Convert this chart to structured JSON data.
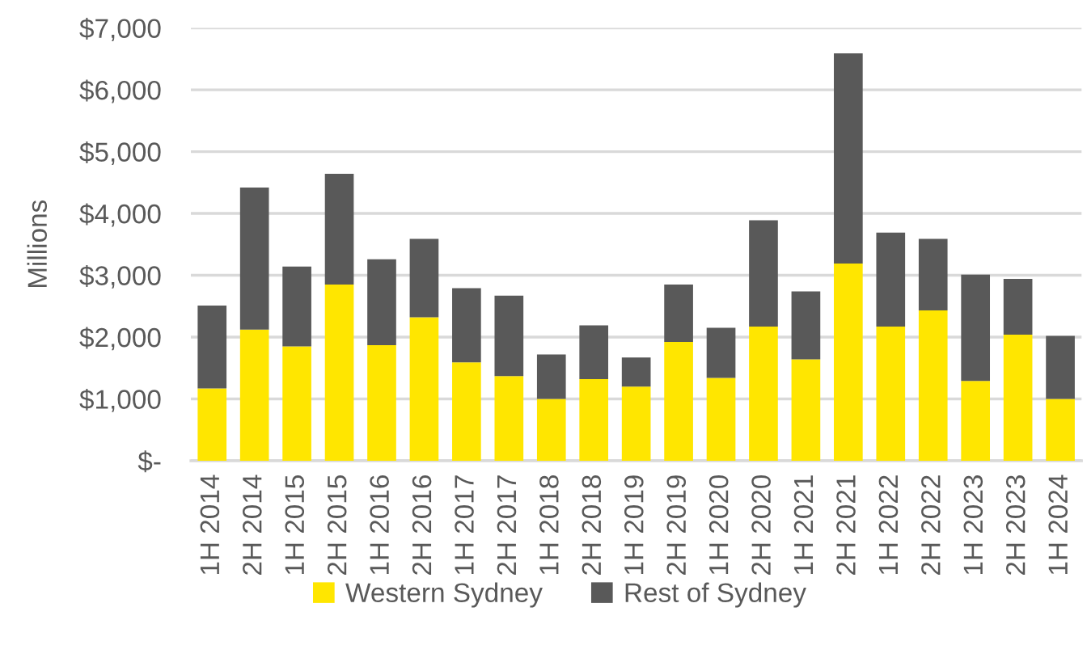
{
  "chart_data": {
    "type": "bar",
    "stacked": true,
    "ylabel": "Millions",
    "categories": [
      "1H 2014",
      "2H 2014",
      "1H 2015",
      "2H 2015",
      "1H 2016",
      "2H 2016",
      "1H 2017",
      "2H 2017",
      "1H 2018",
      "2H 2018",
      "1H 2019",
      "2H 2019",
      "1H 2020",
      "2H 2020",
      "1H 2021",
      "2H 2021",
      "1H 2022",
      "2H 2022",
      "1H 2023",
      "2H 2023",
      "1H 2024"
    ],
    "series": [
      {
        "name": "Western Sydney",
        "color": "#ffe600",
        "values": [
          1170,
          2120,
          1850,
          2850,
          1870,
          2320,
          1590,
          1370,
          1000,
          1320,
          1200,
          1920,
          1340,
          2170,
          1640,
          3190,
          2170,
          2430,
          1290,
          2040,
          1000
        ]
      },
      {
        "name": "Rest of Sydney",
        "color": "#595959",
        "values": [
          1340,
          2300,
          1290,
          1790,
          1390,
          1270,
          1200,
          1300,
          720,
          870,
          470,
          930,
          810,
          1720,
          1100,
          3400,
          1520,
          1160,
          1720,
          900,
          1020
        ]
      }
    ],
    "ylim": [
      0,
      7000
    ],
    "yticks": [
      {
        "value": 0,
        "label": "$-"
      },
      {
        "value": 1000,
        "label": "$1,000"
      },
      {
        "value": 2000,
        "label": "$2,000"
      },
      {
        "value": 3000,
        "label": "$3,000"
      },
      {
        "value": 4000,
        "label": "$4,000"
      },
      {
        "value": 5000,
        "label": "$5,000"
      },
      {
        "value": 6000,
        "label": "$6,000"
      },
      {
        "value": 7000,
        "label": "$7,000"
      }
    ],
    "grid": "y",
    "legend": "bottom"
  }
}
